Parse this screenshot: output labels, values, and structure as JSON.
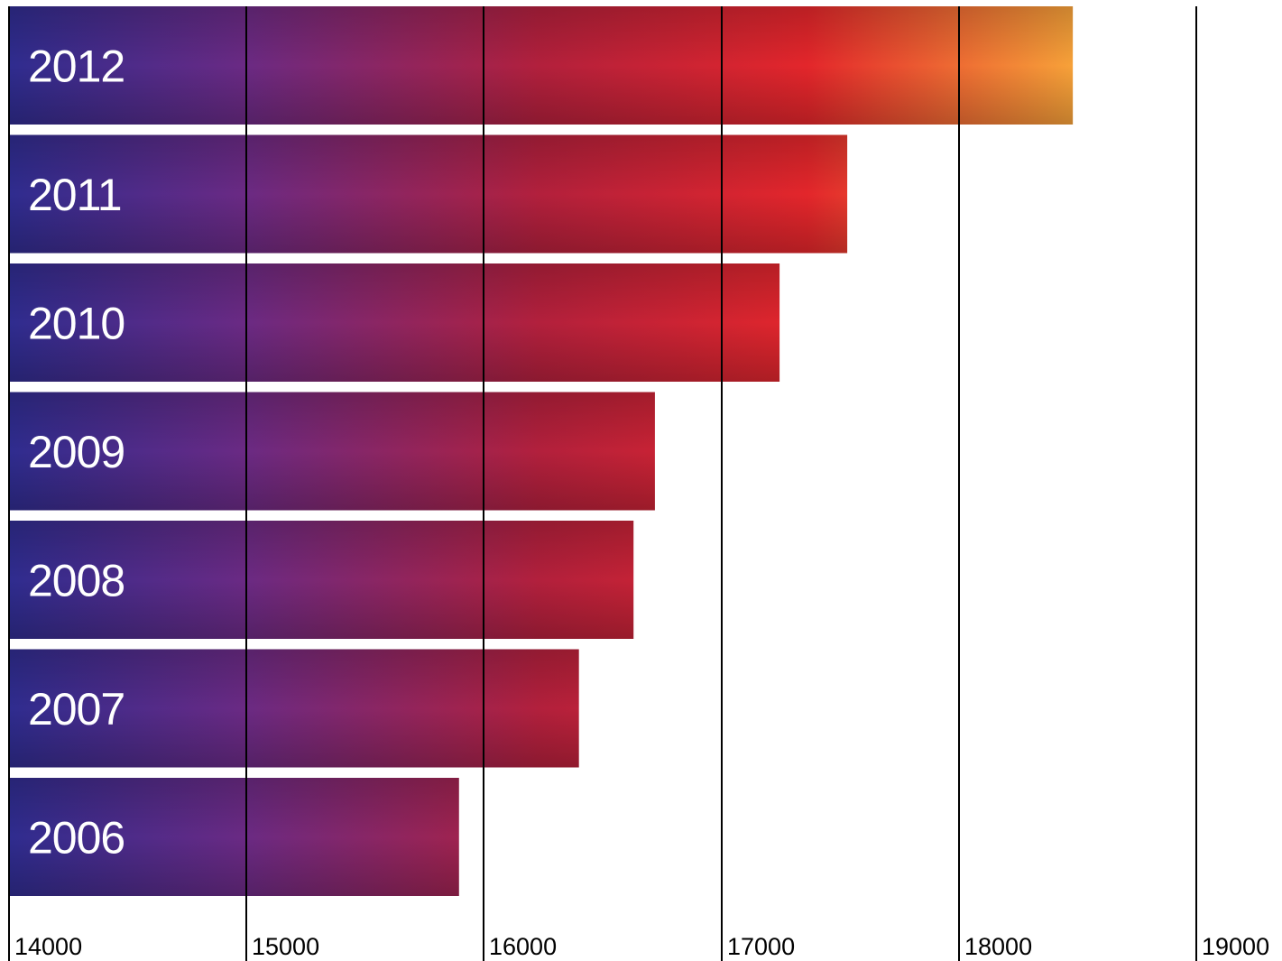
{
  "chart_data": {
    "type": "bar",
    "orientation": "horizontal",
    "categories": [
      "2012",
      "2011",
      "2010",
      "2009",
      "2008",
      "2007",
      "2006"
    ],
    "values": [
      18480,
      17530,
      17245,
      16720,
      16630,
      16400,
      15895
    ],
    "title": "",
    "xlabel": "",
    "ylabel": "",
    "xlim": [
      14000,
      19000
    ],
    "xticks": [
      "14000",
      "15000",
      "16000",
      "17000",
      "18000",
      "19000"
    ],
    "grid": true,
    "legend": "none",
    "colors": {
      "gradient_start": "#2f2c8f",
      "gradient_mid1": "#6a2a84",
      "gradient_mid2": "#b3203c",
      "gradient_mid3": "#e3262b",
      "gradient_end": "#f7a239"
    }
  }
}
